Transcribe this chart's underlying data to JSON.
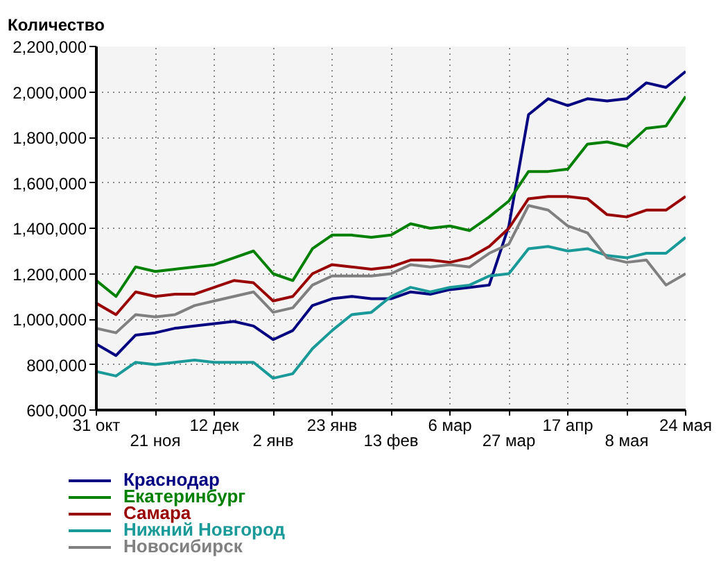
{
  "chart_data": {
    "type": "line",
    "ylabel": "Количество",
    "categories": [
      "31 окт",
      null,
      null,
      "21 ноя",
      null,
      null,
      "12 дек",
      null,
      null,
      "2 янв",
      null,
      null,
      "23 янв",
      null,
      null,
      "13 фев",
      null,
      null,
      "6 мар",
      null,
      null,
      "27 мар",
      null,
      null,
      "17 апр",
      null,
      null,
      "8 мая",
      null,
      null,
      "24 мая"
    ],
    "ylim": [
      600000,
      2200000
    ],
    "yticks": [
      {
        "value": 600000,
        "label": "600,000"
      },
      {
        "value": 800000,
        "label": "800,000"
      },
      {
        "value": 1000000,
        "label": "1,000,000"
      },
      {
        "value": 1200000,
        "label": "1,200,000"
      },
      {
        "value": 1400000,
        "label": "1,400,000"
      },
      {
        "value": 1600000,
        "label": "1,600,000"
      },
      {
        "value": 1800000,
        "label": "1,800,000"
      },
      {
        "value": 2000000,
        "label": "2,000,000"
      },
      {
        "value": 2200000,
        "label": "2,200,000"
      }
    ],
    "grid": true,
    "legend": "bottom",
    "series": [
      {
        "name": "Краснодар",
        "color": "#000080",
        "values": [
          890000,
          840000,
          930000,
          940000,
          960000,
          970000,
          980000,
          990000,
          970000,
          910000,
          950000,
          1060000,
          1090000,
          1100000,
          1090000,
          1090000,
          1120000,
          1110000,
          1130000,
          1140000,
          1150000,
          1410000,
          1900000,
          1970000,
          1940000,
          1970000,
          1960000,
          1970000,
          2040000,
          2020000,
          2090000
        ]
      },
      {
        "name": "Екатеринбург",
        "color": "#008000",
        "values": [
          1170000,
          1100000,
          1230000,
          1210000,
          1220000,
          1230000,
          1240000,
          1270000,
          1300000,
          1200000,
          1170000,
          1310000,
          1370000,
          1370000,
          1360000,
          1370000,
          1420000,
          1400000,
          1410000,
          1390000,
          1450000,
          1520000,
          1650000,
          1650000,
          1660000,
          1770000,
          1780000,
          1760000,
          1840000,
          1850000,
          1980000
        ]
      },
      {
        "name": "Самара",
        "color": "#990000",
        "values": [
          1070000,
          1020000,
          1120000,
          1100000,
          1110000,
          1110000,
          1140000,
          1170000,
          1160000,
          1080000,
          1100000,
          1200000,
          1240000,
          1230000,
          1220000,
          1230000,
          1260000,
          1260000,
          1250000,
          1270000,
          1320000,
          1400000,
          1530000,
          1540000,
          1540000,
          1530000,
          1460000,
          1450000,
          1480000,
          1480000,
          1540000
        ]
      },
      {
        "name": "Нижний Новгород",
        "color": "#1a9999",
        "values": [
          770000,
          750000,
          810000,
          800000,
          810000,
          820000,
          810000,
          810000,
          810000,
          740000,
          760000,
          870000,
          950000,
          1020000,
          1030000,
          1100000,
          1140000,
          1120000,
          1140000,
          1150000,
          1190000,
          1200000,
          1310000,
          1320000,
          1300000,
          1310000,
          1280000,
          1270000,
          1290000,
          1290000,
          1360000
        ]
      },
      {
        "name": "Новосибирск",
        "color": "#808080",
        "values": [
          960000,
          940000,
          1020000,
          1010000,
          1020000,
          1060000,
          1080000,
          1100000,
          1120000,
          1030000,
          1050000,
          1150000,
          1190000,
          1190000,
          1190000,
          1200000,
          1240000,
          1230000,
          1240000,
          1230000,
          1290000,
          1330000,
          1500000,
          1480000,
          1410000,
          1380000,
          1270000,
          1250000,
          1260000,
          1150000,
          1200000
        ]
      }
    ]
  }
}
